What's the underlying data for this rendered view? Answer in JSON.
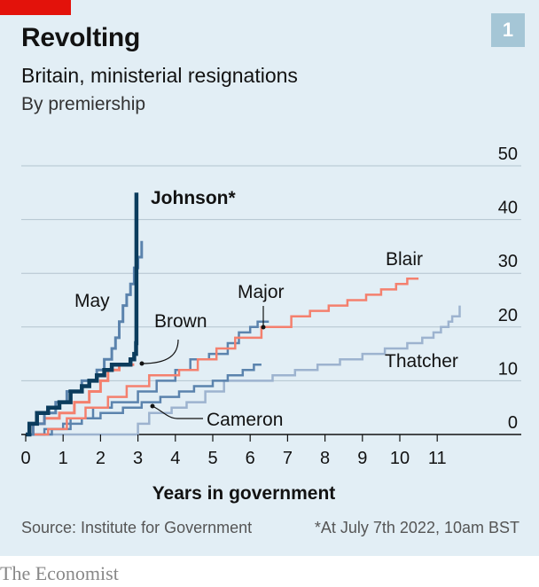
{
  "header": {
    "title": "Revolting",
    "subtitle": "Britain, ministerial resignations",
    "subsubtitle": "By premiership",
    "chart_number": "1"
  },
  "footer": {
    "source": "Source: Institute for Government",
    "footnote": "*At July 7th 2022, 10am BST",
    "brand": "The Economist"
  },
  "colors": {
    "background": "#e2eef5",
    "brand_red": "#e3120b",
    "johnson": "#0b3c5d",
    "highlight": "#f4806e",
    "mid_blue": "#5b83ad",
    "light_blue": "#9db3cf"
  },
  "chart_data": {
    "type": "line",
    "xlabel": "Years in government",
    "ylabel": "",
    "xlim": [
      0,
      12
    ],
    "ylim": [
      0,
      50
    ],
    "xticks": [
      "0",
      "1",
      "2",
      "3",
      "4",
      "5",
      "6",
      "7",
      "8",
      "9",
      "10",
      "11"
    ],
    "yticks": [
      "0",
      "10",
      "20",
      "30",
      "40",
      "50"
    ],
    "grid": true,
    "step": true,
    "series": [
      {
        "name": "Thatcher",
        "color": "#9db3cf",
        "width": 2.5,
        "x": [
          0,
          2.9,
          3.0,
          3.3,
          3.9,
          4.3,
          4.8,
          5.3,
          6.6,
          7.2,
          7.8,
          8.4,
          9.0,
          9.6,
          10.2,
          10.6,
          10.9,
          11.1,
          11.3,
          11.4,
          11.6
        ],
        "y": [
          0,
          0,
          2,
          4,
          5,
          6,
          8,
          10,
          11,
          12,
          13,
          14,
          15,
          16,
          17,
          18,
          19,
          20,
          21,
          22,
          24
        ]
      },
      {
        "name": "Cameron",
        "color": "#5b83ad",
        "width": 2.5,
        "x": [
          0,
          0.5,
          1.0,
          1.5,
          2.0,
          2.6,
          3.1,
          3.6,
          4.1,
          4.5,
          5.0,
          5.4,
          5.8,
          6.1,
          6.3
        ],
        "y": [
          0,
          1,
          2,
          3,
          4,
          5,
          6,
          7,
          8,
          9,
          10,
          11,
          12,
          13,
          13
        ]
      },
      {
        "name": "Major",
        "color": "#5b83ad",
        "width": 2.5,
        "x": [
          0,
          0.7,
          1.2,
          1.8,
          2.3,
          3.0,
          3.5,
          4.0,
          4.4,
          4.9,
          5.4,
          5.7,
          6.0,
          6.2,
          6.5
        ],
        "y": [
          0,
          1,
          3,
          5,
          6,
          8,
          10,
          12,
          14,
          15,
          17,
          19,
          20,
          21,
          21
        ]
      },
      {
        "name": "Blair",
        "color": "#f4806e",
        "width": 2.5,
        "x": [
          0,
          0.6,
          1.1,
          1.6,
          2.2,
          2.7,
          3.3,
          4.1,
          4.6,
          5.1,
          5.6,
          6.3,
          7.1,
          7.6,
          8.1,
          8.6,
          9.1,
          9.5,
          9.9,
          10.2,
          10.5
        ],
        "y": [
          0,
          1,
          3,
          5,
          7,
          9,
          11,
          12,
          14,
          16,
          18,
          20,
          22,
          23,
          24,
          25,
          26,
          27,
          28,
          29,
          29
        ]
      },
      {
        "name": "Brown",
        "color": "#f4806e",
        "width": 3,
        "x": [
          0,
          0.2,
          0.5,
          0.9,
          1.3,
          1.7,
          2.0,
          2.2,
          2.5,
          2.9
        ],
        "y": [
          0,
          2,
          3,
          4,
          6,
          8,
          10,
          12,
          13,
          13
        ]
      },
      {
        "name": "May",
        "color": "#5b83ad",
        "width": 3,
        "x": [
          0,
          0.2,
          0.5,
          0.8,
          1.1,
          1.5,
          1.9,
          2.1,
          2.3,
          2.4,
          2.5,
          2.6,
          2.7,
          2.8,
          2.9,
          3.0,
          3.1
        ],
        "y": [
          0,
          2,
          4,
          6,
          8,
          10,
          12,
          14,
          16,
          18,
          21,
          24,
          26,
          28,
          31,
          33,
          36
        ]
      },
      {
        "name": "Johnson*",
        "color": "#0b3c5d",
        "width": 4.5,
        "x": [
          0,
          0.1,
          0.3,
          0.6,
          0.9,
          1.2,
          1.5,
          1.7,
          1.9,
          2.1,
          2.3,
          2.8,
          2.9,
          2.95,
          2.96
        ],
        "y": [
          0,
          2,
          4,
          5,
          6,
          8,
          9,
          10,
          11,
          12,
          13,
          14,
          15,
          17,
          45
        ]
      }
    ],
    "annotations": [
      {
        "text": "Johnson*",
        "series": "Johnson*",
        "bold": true
      },
      {
        "text": "May",
        "series": "May"
      },
      {
        "text": "Brown",
        "series": "Brown"
      },
      {
        "text": "Major",
        "series": "Major"
      },
      {
        "text": "Blair",
        "series": "Blair"
      },
      {
        "text": "Thatcher",
        "series": "Thatcher"
      },
      {
        "text": "Cameron",
        "series": "Cameron"
      }
    ]
  }
}
